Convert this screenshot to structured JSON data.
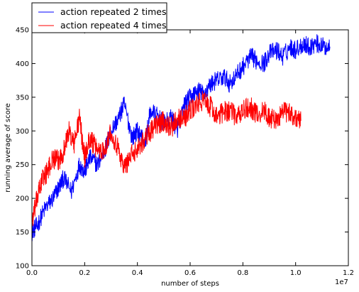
{
  "chart_data": {
    "type": "line",
    "xlabel": "number of steps",
    "ylabel": "running average of score",
    "x_offset_label": "1e7",
    "xlim": [
      0,
      1.2
    ],
    "ylim": [
      100,
      450
    ],
    "x_ticks": [
      "0.0",
      "0.2",
      "0.4",
      "0.6",
      "0.8",
      "1.0",
      "1.2"
    ],
    "y_ticks": [
      "100",
      "150",
      "200",
      "250",
      "300",
      "350",
      "400",
      "450"
    ],
    "grid": false,
    "legend_position": "top-left",
    "series": [
      {
        "name": "action repeated 2 times",
        "color": "#0000ff",
        "x": [
          0.0,
          0.02,
          0.05,
          0.08,
          0.1,
          0.12,
          0.15,
          0.18,
          0.2,
          0.22,
          0.25,
          0.28,
          0.3,
          0.33,
          0.35,
          0.38,
          0.4,
          0.43,
          0.45,
          0.48,
          0.5,
          0.53,
          0.55,
          0.58,
          0.6,
          0.63,
          0.65,
          0.68,
          0.7,
          0.73,
          0.75,
          0.78,
          0.8,
          0.83,
          0.85,
          0.88,
          0.9,
          0.93,
          0.95,
          0.98,
          1.0,
          1.03,
          1.05,
          1.08,
          1.1,
          1.13
        ],
        "y": [
          150,
          160,
          185,
          200,
          215,
          230,
          210,
          250,
          240,
          260,
          250,
          275,
          300,
          320,
          340,
          290,
          300,
          285,
          330,
          320,
          310,
          320,
          300,
          340,
          350,
          360,
          355,
          370,
          375,
          380,
          370,
          385,
          395,
          410,
          405,
          400,
          415,
          420,
          410,
          425,
          420,
          430,
          425,
          430,
          425,
          425
        ]
      },
      {
        "name": "action repeated 4 times",
        "color": "#ff0000",
        "x": [
          0.0,
          0.02,
          0.04,
          0.06,
          0.08,
          0.1,
          0.12,
          0.14,
          0.16,
          0.18,
          0.2,
          0.22,
          0.24,
          0.27,
          0.3,
          0.33,
          0.35,
          0.37,
          0.4,
          0.43,
          0.45,
          0.48,
          0.5,
          0.53,
          0.55,
          0.58,
          0.6,
          0.63,
          0.65,
          0.68,
          0.7,
          0.73,
          0.75,
          0.78,
          0.8,
          0.83,
          0.85,
          0.88,
          0.9,
          0.93,
          0.95,
          0.98,
          1.0,
          1.02
        ],
        "y": [
          165,
          200,
          230,
          240,
          260,
          255,
          270,
          300,
          280,
          320,
          260,
          290,
          275,
          270,
          300,
          270,
          245,
          260,
          275,
          290,
          300,
          310,
          315,
          305,
          320,
          320,
          330,
          340,
          345,
          335,
          320,
          330,
          330,
          320,
          330,
          335,
          325,
          330,
          320,
          315,
          330,
          325,
          320,
          315
        ]
      }
    ]
  }
}
